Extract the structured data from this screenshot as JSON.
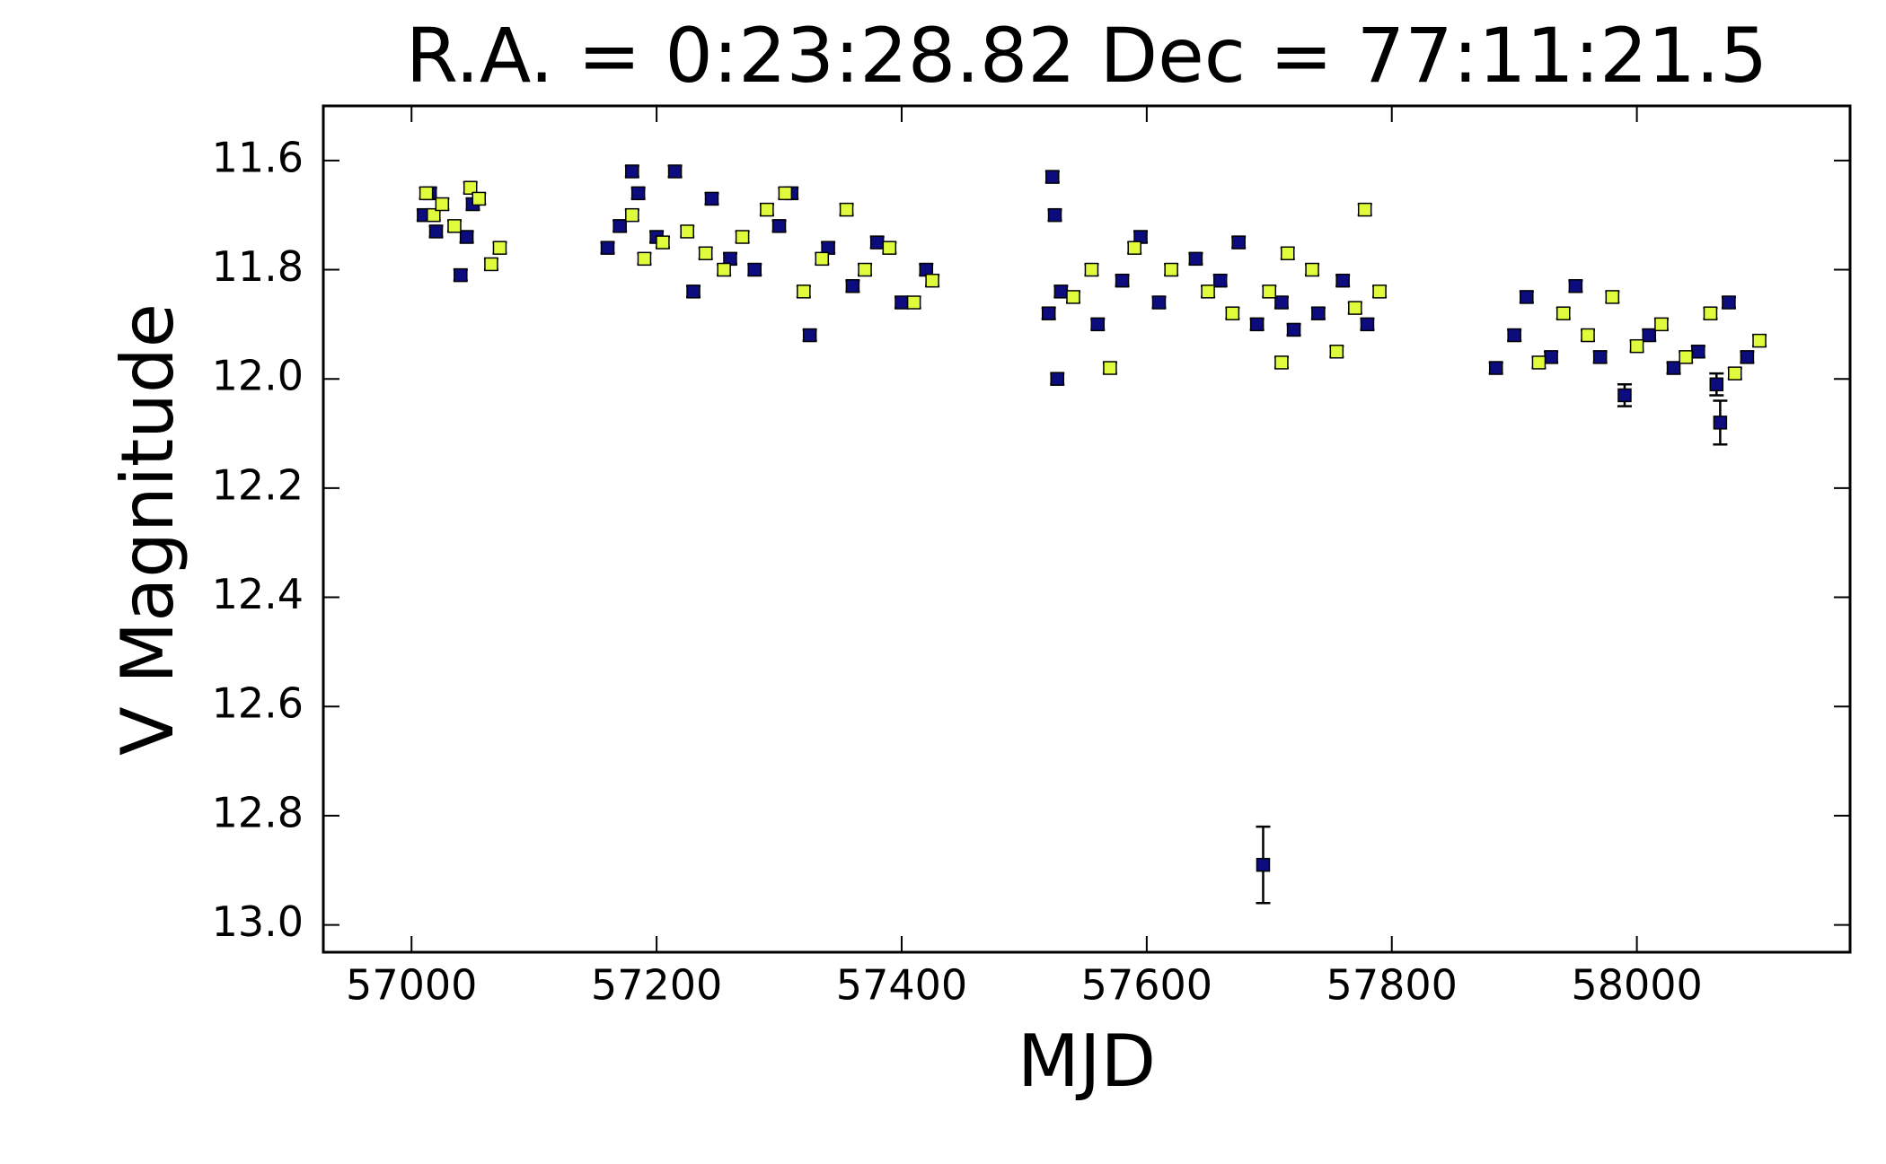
{
  "chart_data": {
    "type": "errorbar-scatter",
    "title": "R.A. = 0:23:28.82   Dec = 77:11:21.5",
    "xlabel": "MJD",
    "ylabel": "V Magnitude",
    "xlim": [
      56928,
      58174
    ],
    "ylim": [
      13.05,
      11.5
    ],
    "xticks": [
      57000,
      57200,
      57400,
      57600,
      57800,
      58000
    ],
    "yticks": [
      11.6,
      11.8,
      {
        "value": 12,
        "label": "12.0"
      },
      12.2,
      12.4,
      12.6,
      12.8,
      {
        "value": 13,
        "label": "13.0"
      }
    ],
    "series": [
      {
        "color": "#0c0c7e",
        "x": [
          57010,
          57015,
          57020,
          57040,
          57045,
          57050,
          57160,
          57170,
          57180,
          57185,
          57200,
          57215,
          57230,
          57245,
          57260,
          57280,
          57300,
          57310,
          57325,
          57340,
          57360,
          57380,
          57400,
          57420,
          57520,
          57523,
          57525,
          57527,
          57530,
          57560,
          57580,
          57595,
          57610,
          57640,
          57660,
          57675,
          57690,
          57695,
          57710,
          57720,
          57740,
          57760,
          57780,
          57885,
          57900,
          57910,
          57930,
          57950,
          57970,
          57990,
          58010,
          58030,
          58050,
          58065,
          58068,
          58075,
          58090
        ],
        "values": [
          11.7,
          11.66,
          11.73,
          11.81,
          11.74,
          11.68,
          11.76,
          11.72,
          11.62,
          11.66,
          11.74,
          11.62,
          11.84,
          11.67,
          11.78,
          11.8,
          11.72,
          11.66,
          11.92,
          11.76,
          11.83,
          11.75,
          11.86,
          11.8,
          11.88,
          11.63,
          11.7,
          12.0,
          11.84,
          11.9,
          11.82,
          11.74,
          11.86,
          11.78,
          11.82,
          11.75,
          11.9,
          12.89,
          11.86,
          11.91,
          11.88,
          11.82,
          11.9,
          11.98,
          11.92,
          11.85,
          11.96,
          11.83,
          11.96,
          12.03,
          11.92,
          11.98,
          11.95,
          12.01,
          12.08,
          11.86,
          11.96
        ],
        "errors": [
          0.01,
          0.01,
          0.01,
          0.01,
          0.01,
          0.01,
          0.01,
          0.01,
          0.01,
          0.01,
          0.01,
          0.01,
          0.01,
          0.01,
          0.01,
          0.01,
          0.01,
          0.01,
          0.01,
          0.01,
          0.01,
          0.01,
          0.01,
          0.01,
          0.01,
          0.01,
          0.01,
          0.01,
          0.01,
          0.01,
          0.01,
          0.01,
          0.01,
          0.01,
          0.01,
          0.01,
          0.01,
          0.07,
          0.01,
          0.01,
          0.01,
          0.01,
          0.01,
          0.01,
          0.01,
          0.01,
          0.01,
          0.01,
          0.01,
          0.02,
          0.01,
          0.01,
          0.01,
          0.02,
          0.04,
          0.01,
          0.01
        ]
      },
      {
        "color": "#e0fb3c",
        "x": [
          57012,
          57018,
          57025,
          57035,
          57048,
          57055,
          57065,
          57072,
          57180,
          57190,
          57205,
          57225,
          57240,
          57255,
          57270,
          57290,
          57305,
          57320,
          57335,
          57355,
          57370,
          57390,
          57410,
          57425,
          57540,
          57555,
          57570,
          57590,
          57620,
          57650,
          57670,
          57700,
          57710,
          57715,
          57735,
          57755,
          57770,
          57778,
          57790,
          57920,
          57940,
          57960,
          57980,
          58000,
          58020,
          58040,
          58060,
          58080,
          58100
        ],
        "values": [
          11.66,
          11.7,
          11.68,
          11.72,
          11.65,
          11.67,
          11.79,
          11.76,
          11.7,
          11.78,
          11.75,
          11.73,
          11.77,
          11.8,
          11.74,
          11.69,
          11.66,
          11.84,
          11.78,
          11.69,
          11.8,
          11.76,
          11.86,
          11.82,
          11.85,
          11.8,
          11.98,
          11.76,
          11.8,
          11.84,
          11.88,
          11.84,
          11.97,
          11.77,
          11.8,
          11.95,
          11.87,
          11.69,
          11.84,
          11.97,
          11.88,
          11.92,
          11.85,
          11.94,
          11.9,
          11.96,
          11.88,
          11.99,
          11.93
        ],
        "errors": [
          0.01,
          0.01,
          0.01,
          0.01,
          0.01,
          0.01,
          0.01,
          0.01,
          0.01,
          0.01,
          0.01,
          0.01,
          0.01,
          0.01,
          0.01,
          0.01,
          0.01,
          0.01,
          0.01,
          0.01,
          0.01,
          0.01,
          0.01,
          0.01,
          0.01,
          0.01,
          0.01,
          0.01,
          0.01,
          0.01,
          0.01,
          0.01,
          0.01,
          0.01,
          0.01,
          0.01,
          0.01,
          0.01,
          0.01,
          0.01,
          0.01,
          0.01,
          0.01,
          0.01,
          0.01,
          0.01,
          0.01,
          0.01,
          0.01
        ]
      }
    ]
  }
}
